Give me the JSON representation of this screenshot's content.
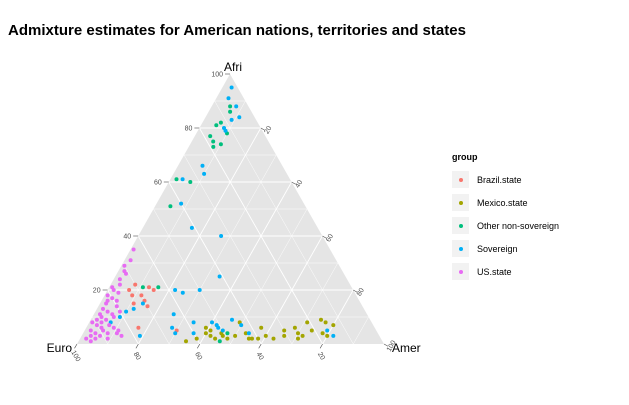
{
  "chart_data": {
    "type": "scatter",
    "subtype": "ternary",
    "title": "Admixture estimates for American nations, territories and states",
    "axes": {
      "top": "Afri",
      "left": "Euro",
      "right": "Amer"
    },
    "ticks": {
      "afri": [
        "20",
        "40",
        "60",
        "80",
        "100"
      ],
      "euro": [
        "100",
        "80",
        "60",
        "40",
        "20"
      ],
      "amer": [
        "20",
        "40",
        "60",
        "80",
        "100"
      ]
    },
    "grid": true,
    "legend": {
      "title": "group",
      "position": "right",
      "entries": [
        {
          "name": "Brazil.state",
          "color": "#F8766D"
        },
        {
          "name": "Mexico.state",
          "color": "#A3A500"
        },
        {
          "name": "Other non-sovereign",
          "color": "#00BF7D"
        },
        {
          "name": "Sovereign",
          "color": "#00B0F6"
        },
        {
          "name": "US.state",
          "color": "#E76BF3"
        }
      ]
    },
    "series": [
      {
        "name": "Brazil.state",
        "points": [
          {
            "afri": 20,
            "amer": 7
          },
          {
            "afri": 22,
            "amer": 8
          },
          {
            "afri": 18,
            "amer": 9
          },
          {
            "afri": 21,
            "amer": 13
          },
          {
            "afri": 16,
            "amer": 14
          },
          {
            "afri": 14,
            "amer": 16
          },
          {
            "afri": 18,
            "amer": 12
          },
          {
            "afri": 6,
            "amer": 17
          },
          {
            "afri": 5,
            "amer": 30
          },
          {
            "afri": 15,
            "amer": 11
          },
          {
            "afri": 20,
            "amer": 15
          }
        ]
      },
      {
        "name": "Mexico.state",
        "points": [
          {
            "afri": 2,
            "amer": 38
          },
          {
            "afri": 4,
            "amer": 40
          },
          {
            "afri": 3,
            "amer": 42
          },
          {
            "afri": 2,
            "amer": 44
          },
          {
            "afri": 3,
            "amer": 46
          },
          {
            "afri": 2,
            "amer": 48
          },
          {
            "afri": 3,
            "amer": 50
          },
          {
            "afri": 4,
            "amer": 53
          },
          {
            "afri": 2,
            "amer": 55
          },
          {
            "afri": 2,
            "amer": 58
          },
          {
            "afri": 3,
            "amer": 60
          },
          {
            "afri": 8,
            "amer": 49
          },
          {
            "afri": 5,
            "amer": 41
          },
          {
            "afri": 6,
            "amer": 57
          },
          {
            "afri": 2,
            "amer": 63
          },
          {
            "afri": 3,
            "amer": 66
          },
          {
            "afri": 5,
            "amer": 65
          },
          {
            "afri": 6,
            "amer": 68
          },
          {
            "afri": 4,
            "amer": 70
          },
          {
            "afri": 2,
            "amer": 71
          },
          {
            "afri": 3,
            "amer": 72
          },
          {
            "afri": 5,
            "amer": 74
          },
          {
            "afri": 8,
            "amer": 71
          },
          {
            "afri": 9,
            "amer": 75
          },
          {
            "afri": 8,
            "amer": 77
          },
          {
            "afri": 7,
            "amer": 80
          },
          {
            "afri": 4,
            "amer": 78
          },
          {
            "afri": 3,
            "amer": 80
          },
          {
            "afri": 2,
            "amer": 56
          },
          {
            "afri": 1,
            "amer": 35
          },
          {
            "afri": 6,
            "amer": 39
          },
          {
            "afri": 4,
            "amer": 45
          }
        ]
      },
      {
        "name": "Other non-sovereign",
        "points": [
          {
            "afri": 73,
            "amer": 8
          },
          {
            "afri": 75,
            "amer": 7
          },
          {
            "afri": 77,
            "amer": 5
          },
          {
            "afri": 81,
            "amer": 5
          },
          {
            "afri": 82,
            "amer": 6
          },
          {
            "afri": 78,
            "amer": 10
          },
          {
            "afri": 74,
            "amer": 10
          },
          {
            "afri": 86,
            "amer": 7
          },
          {
            "afri": 88,
            "amer": 6
          },
          {
            "afri": 61,
            "amer": 2
          },
          {
            "afri": 60,
            "amer": 7
          },
          {
            "afri": 51,
            "amer": 5
          },
          {
            "afri": 21,
            "amer": 16
          },
          {
            "afri": 21,
            "amer": 11
          },
          {
            "afri": 4,
            "amer": 47
          },
          {
            "afri": 1,
            "amer": 46
          }
        ]
      },
      {
        "name": "Sovereign",
        "points": [
          {
            "afri": 95,
            "amer": 3
          },
          {
            "afri": 91,
            "amer": 4
          },
          {
            "afri": 88,
            "amer": 8
          },
          {
            "afri": 84,
            "amer": 11
          },
          {
            "afri": 83,
            "amer": 9
          },
          {
            "afri": 80,
            "amer": 8
          },
          {
            "afri": 79,
            "amer": 9
          },
          {
            "afri": 66,
            "amer": 8
          },
          {
            "afri": 63,
            "amer": 10
          },
          {
            "afri": 61,
            "amer": 4
          },
          {
            "afri": 52,
            "amer": 8
          },
          {
            "afri": 43,
            "amer": 16
          },
          {
            "afri": 40,
            "amer": 27
          },
          {
            "afri": 25,
            "amer": 34
          },
          {
            "afri": 20,
            "amer": 30
          },
          {
            "afri": 20,
            "amer": 22
          },
          {
            "afri": 19,
            "amer": 25
          },
          {
            "afri": 11,
            "amer": 26
          },
          {
            "afri": 15,
            "amer": 14
          },
          {
            "afri": 13,
            "amer": 12
          },
          {
            "afri": 10,
            "amer": 9
          },
          {
            "afri": 8,
            "amer": 7
          },
          {
            "afri": 8,
            "amer": 40
          },
          {
            "afri": 7,
            "amer": 42
          },
          {
            "afri": 5,
            "amer": 45
          },
          {
            "afri": 4,
            "amer": 30
          },
          {
            "afri": 3,
            "amer": 19
          },
          {
            "afri": 4,
            "amer": 54
          },
          {
            "afri": 6,
            "amer": 43
          },
          {
            "afri": 5,
            "amer": 79
          },
          {
            "afri": 3,
            "amer": 82
          },
          {
            "afri": 4,
            "amer": 36
          },
          {
            "afri": 8,
            "amer": 34
          },
          {
            "afri": 7,
            "amer": 50
          },
          {
            "afri": 12,
            "amer": 10
          },
          {
            "afri": 6,
            "amer": 28
          },
          {
            "afri": 9,
            "amer": 46
          }
        ]
      },
      {
        "name": "US.state",
        "points": [
          {
            "afri": 35,
            "amer": 1
          },
          {
            "afri": 31,
            "amer": 2
          },
          {
            "afri": 29,
            "amer": 1
          },
          {
            "afri": 27,
            "amer": 2
          },
          {
            "afri": 26,
            "amer": 3
          },
          {
            "afri": 24,
            "amer": 2
          },
          {
            "afri": 22,
            "amer": 3
          },
          {
            "afri": 21,
            "amer": 1
          },
          {
            "afri": 20,
            "amer": 2
          },
          {
            "afri": 19,
            "amer": 4
          },
          {
            "afri": 18,
            "amer": 1
          },
          {
            "afri": 17,
            "amer": 3
          },
          {
            "afri": 16,
            "amer": 5
          },
          {
            "afri": 15,
            "amer": 2
          },
          {
            "afri": 14,
            "amer": 6
          },
          {
            "afri": 13,
            "amer": 2
          },
          {
            "afri": 12,
            "amer": 4
          },
          {
            "afri": 11,
            "amer": 6
          },
          {
            "afri": 10,
            "amer": 3
          },
          {
            "afri": 10,
            "amer": 7
          },
          {
            "afri": 9,
            "amer": 5
          },
          {
            "afri": 8,
            "amer": 1
          },
          {
            "afri": 8,
            "amer": 4
          },
          {
            "afri": 7,
            "amer": 7
          },
          {
            "afri": 7,
            "amer": 3
          },
          {
            "afri": 6,
            "amer": 5
          },
          {
            "afri": 6,
            "amer": 9
          },
          {
            "afri": 5,
            "amer": 2
          },
          {
            "afri": 5,
            "amer": 6
          },
          {
            "afri": 4,
            "amer": 4
          },
          {
            "afri": 4,
            "amer": 8
          },
          {
            "afri": 3,
            "amer": 3
          },
          {
            "afri": 3,
            "amer": 6
          },
          {
            "afri": 2,
            "amer": 2
          },
          {
            "afri": 2,
            "amer": 5
          },
          {
            "afri": 1,
            "amer": 4
          },
          {
            "afri": 11,
            "amer": 2
          },
          {
            "afri": 12,
            "amer": 8
          },
          {
            "afri": 9,
            "amer": 2
          },
          {
            "afri": 16,
            "amer": 2
          },
          {
            "afri": 4,
            "amer": 11
          },
          {
            "afri": 3,
            "amer": 13
          },
          {
            "afri": 5,
            "amer": 11
          },
          {
            "afri": 2,
            "amer": 9
          }
        ]
      }
    ]
  }
}
